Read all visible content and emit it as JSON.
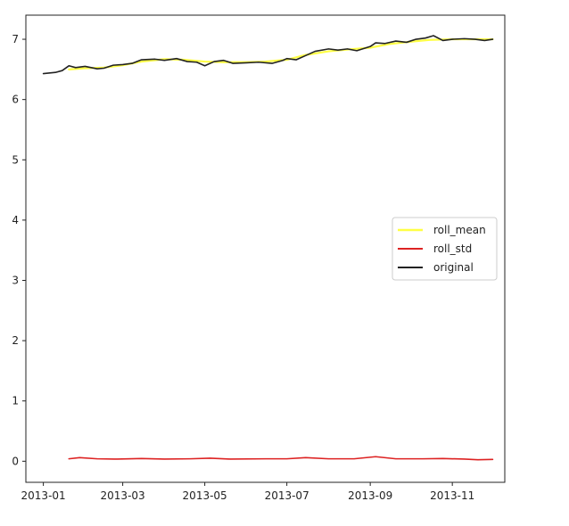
{
  "chart_data": {
    "type": "line",
    "title": "",
    "xlabel": "",
    "ylabel": "",
    "x_ticks": [
      "2013-01",
      "2013-03",
      "2013-05",
      "2013-07",
      "2013-09",
      "2013-11"
    ],
    "y_ticks": [
      "0",
      "1",
      "2",
      "3",
      "4",
      "5",
      "6",
      "7"
    ],
    "xlim": [
      "2012-12-19",
      "2013-12-10"
    ],
    "ylim": [
      -0.35,
      7.4
    ],
    "legend": {
      "placement": "center-right"
    },
    "grid": false,
    "series": [
      {
        "name": "roll_mean",
        "color": "#ffff44",
        "linewidth": 2.2,
        "points": [
          [
            "2013-01-20",
            6.5
          ],
          [
            "2013-02-01",
            6.52
          ],
          [
            "2013-02-15",
            6.53
          ],
          [
            "2013-03-01",
            6.57
          ],
          [
            "2013-03-15",
            6.63
          ],
          [
            "2013-04-01",
            6.67
          ],
          [
            "2013-04-15",
            6.66
          ],
          [
            "2013-05-01",
            6.63
          ],
          [
            "2013-05-15",
            6.62
          ],
          [
            "2013-06-01",
            6.62
          ],
          [
            "2013-06-15",
            6.63
          ],
          [
            "2013-07-01",
            6.66
          ],
          [
            "2013-07-15",
            6.74
          ],
          [
            "2013-08-01",
            6.8
          ],
          [
            "2013-08-15",
            6.83
          ],
          [
            "2013-09-01",
            6.86
          ],
          [
            "2013-09-15",
            6.92
          ],
          [
            "2013-10-01",
            6.96
          ],
          [
            "2013-10-15",
            6.99
          ],
          [
            "2013-11-01",
            7.0
          ],
          [
            "2013-11-15",
            7.0
          ],
          [
            "2013-12-01",
            7.0
          ]
        ]
      },
      {
        "name": "roll_std",
        "color": "#dd2222",
        "linewidth": 1.6,
        "points": [
          [
            "2013-01-20",
            0.04
          ],
          [
            "2013-01-28",
            0.06
          ],
          [
            "2013-02-10",
            0.04
          ],
          [
            "2013-02-25",
            0.035
          ],
          [
            "2013-03-15",
            0.045
          ],
          [
            "2013-04-01",
            0.035
          ],
          [
            "2013-04-20",
            0.04
          ],
          [
            "2013-05-05",
            0.05
          ],
          [
            "2013-05-20",
            0.035
          ],
          [
            "2013-06-15",
            0.04
          ],
          [
            "2013-07-01",
            0.04
          ],
          [
            "2013-07-15",
            0.06
          ],
          [
            "2013-08-01",
            0.04
          ],
          [
            "2013-08-20",
            0.04
          ],
          [
            "2013-09-05",
            0.075
          ],
          [
            "2013-09-20",
            0.04
          ],
          [
            "2013-10-10",
            0.04
          ],
          [
            "2013-10-25",
            0.045
          ],
          [
            "2013-11-10",
            0.035
          ],
          [
            "2013-11-20",
            0.025
          ],
          [
            "2013-12-01",
            0.03
          ]
        ]
      },
      {
        "name": "original",
        "color": "#222222",
        "linewidth": 1.6,
        "points": [
          [
            "2013-01-01",
            6.43
          ],
          [
            "2013-01-10",
            6.45
          ],
          [
            "2013-01-15",
            6.48
          ],
          [
            "2013-01-20",
            6.56
          ],
          [
            "2013-01-25",
            6.53
          ],
          [
            "2013-02-01",
            6.55
          ],
          [
            "2013-02-10",
            6.51
          ],
          [
            "2013-02-15",
            6.52
          ],
          [
            "2013-02-22",
            6.57
          ],
          [
            "2013-03-01",
            6.58
          ],
          [
            "2013-03-08",
            6.6
          ],
          [
            "2013-03-15",
            6.66
          ],
          [
            "2013-03-25",
            6.67
          ],
          [
            "2013-04-01",
            6.65
          ],
          [
            "2013-04-10",
            6.68
          ],
          [
            "2013-04-18",
            6.63
          ],
          [
            "2013-04-25",
            6.62
          ],
          [
            "2013-05-01",
            6.56
          ],
          [
            "2013-05-08",
            6.63
          ],
          [
            "2013-05-15",
            6.65
          ],
          [
            "2013-05-22",
            6.6
          ],
          [
            "2013-06-01",
            6.61
          ],
          [
            "2013-06-10",
            6.62
          ],
          [
            "2013-06-20",
            6.6
          ],
          [
            "2013-06-28",
            6.65
          ],
          [
            "2013-07-01",
            6.68
          ],
          [
            "2013-07-08",
            6.66
          ],
          [
            "2013-07-15",
            6.73
          ],
          [
            "2013-07-22",
            6.8
          ],
          [
            "2013-08-01",
            6.84
          ],
          [
            "2013-08-08",
            6.82
          ],
          [
            "2013-08-15",
            6.84
          ],
          [
            "2013-08-22",
            6.81
          ],
          [
            "2013-09-01",
            6.88
          ],
          [
            "2013-09-05",
            6.94
          ],
          [
            "2013-09-12",
            6.93
          ],
          [
            "2013-09-20",
            6.97
          ],
          [
            "2013-09-28",
            6.95
          ],
          [
            "2013-10-05",
            7.0
          ],
          [
            "2013-10-12",
            7.02
          ],
          [
            "2013-10-18",
            7.06
          ],
          [
            "2013-10-25",
            6.98
          ],
          [
            "2013-11-01",
            7.0
          ],
          [
            "2013-11-10",
            7.01
          ],
          [
            "2013-11-18",
            7.0
          ],
          [
            "2013-11-25",
            6.98
          ],
          [
            "2013-12-01",
            7.0
          ]
        ]
      }
    ]
  }
}
